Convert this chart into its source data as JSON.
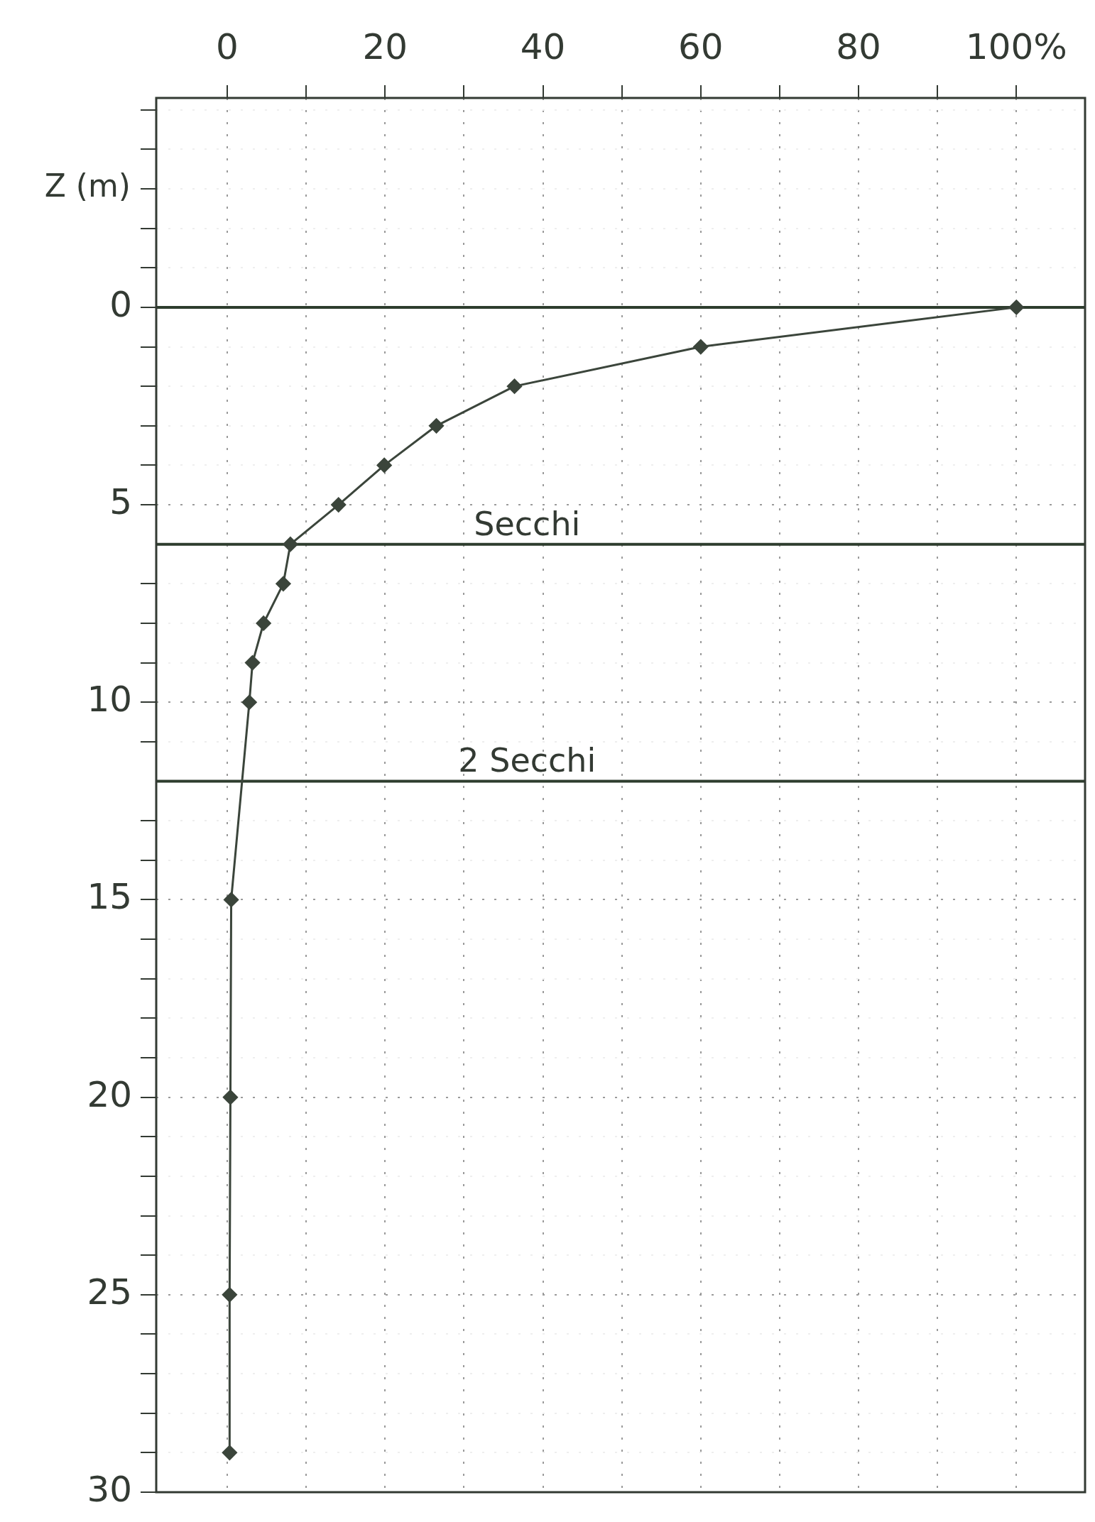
{
  "chart_data": {
    "type": "line",
    "ylabel": "Z (m)",
    "x": [
      100,
      60,
      36.4,
      26.5,
      19.9,
      14.1,
      8.0,
      7.1,
      4.6,
      3.2,
      2.8,
      0.5,
      0.4,
      0.3,
      0.3
    ],
    "series": [
      {
        "color": "#3b453b",
        "values": [
          0,
          1,
          2,
          3,
          4,
          5,
          6,
          7,
          8,
          9,
          10,
          15,
          20,
          25,
          29
        ]
      }
    ],
    "xlim": [
      -9,
      108.7
    ],
    "xticks": [
      0,
      {
        "value": 10,
        "label": null
      },
      20,
      {
        "value": 30,
        "label": null
      },
      40,
      {
        "value": 50,
        "label": null
      },
      60,
      {
        "value": 70,
        "label": null
      },
      80,
      {
        "value": 90,
        "label": null
      },
      {
        "value": 100,
        "label": "100%"
      }
    ],
    "ylim": [
      30,
      -5.3
    ],
    "yticks": [
      {
        "value": -5,
        "label": null
      },
      {
        "value": -4,
        "label": null
      },
      {
        "value": -3,
        "label": null
      },
      {
        "value": -2,
        "label": null
      },
      {
        "value": -1,
        "label": null
      },
      0,
      {
        "value": 1,
        "label": null
      },
      {
        "value": 2,
        "label": null
      },
      {
        "value": 3,
        "label": null
      },
      {
        "value": 4,
        "label": null
      },
      5,
      {
        "value": 7,
        "label": null
      },
      {
        "value": 8,
        "label": null
      },
      {
        "value": 9,
        "label": null
      },
      10,
      {
        "value": 11,
        "label": null
      },
      {
        "value": 13,
        "label": null
      },
      {
        "value": 14,
        "label": null
      },
      15,
      {
        "value": 16,
        "label": null
      },
      {
        "value": 17,
        "label": null
      },
      {
        "value": 18,
        "label": null
      },
      {
        "value": 19,
        "label": null
      },
      20,
      {
        "value": 21,
        "label": null
      },
      {
        "value": 22,
        "label": null
      },
      {
        "value": 23,
        "label": null
      },
      {
        "value": 24,
        "label": null
      },
      25,
      {
        "value": 26,
        "label": null
      },
      {
        "value": 27,
        "label": null
      },
      {
        "value": 28,
        "label": null
      },
      {
        "value": 29,
        "label": null
      },
      30
    ],
    "ref_lines": [
      {
        "axis": "y",
        "value": 0,
        "label": null,
        "color": "#2e3d2e"
      },
      {
        "axis": "y",
        "value": 6,
        "label": "Secchi",
        "color": "#2e3d2e"
      },
      {
        "axis": "y",
        "value": 12,
        "label": "2 Secchi",
        "color": "#2e3d2e"
      }
    ],
    "grid": true,
    "marker": "diamond",
    "line_style": "solid",
    "legend": false
  }
}
